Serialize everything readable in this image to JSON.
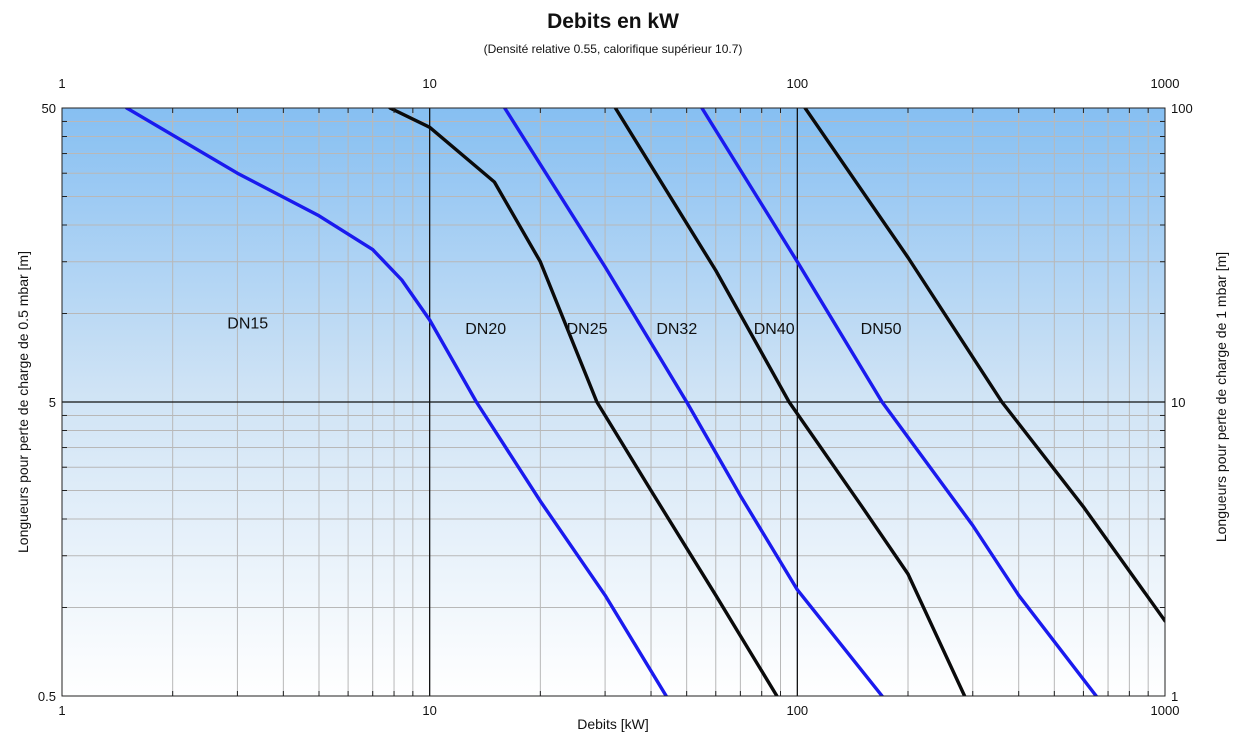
{
  "chart_data": {
    "type": "line",
    "title": "Debits en kW",
    "subtitle": "(Densité relative 0.55, calorifique supérieur 10.7)",
    "xlabel": "Debits [kW]",
    "ylabel_left": "Longueurs pour perte de charge de 0.5 mbar [m]",
    "ylabel_right": "Longueurs pour perte de charge de 1 mbar [m]",
    "x_scale": "log",
    "y_scale": "log",
    "xlim": [
      1,
      1000
    ],
    "ylim_left": [
      0.5,
      50
    ],
    "ylim_right": [
      1,
      100
    ],
    "x_ticks": [
      {
        "value": 1,
        "label": "1"
      },
      {
        "value": 10,
        "label": "10"
      },
      {
        "value": 100,
        "label": "100"
      },
      {
        "value": 1000,
        "label": "1000"
      }
    ],
    "y_ticks_left": [
      {
        "value": 0.5,
        "label": "0.5"
      },
      {
        "value": 5,
        "label": "5"
      },
      {
        "value": 50,
        "label": "50"
      }
    ],
    "y_ticks_right": [
      {
        "value": 1,
        "label": "1"
      },
      {
        "value": 10,
        "label": "10"
      },
      {
        "value": 100,
        "label": "100"
      }
    ],
    "grid": true,
    "colors": {
      "blue_series": "#1a1aee",
      "black_series": "#0a0a0a",
      "background_top": "#86bff2",
      "background_bottom": "#ffffff",
      "grid": "#b8b8b8"
    },
    "series": [
      {
        "name": "DN15",
        "color": "#1a1aee",
        "label_at": [
          3.2,
          8.9
        ],
        "points": [
          [
            1.5,
            50
          ],
          [
            3,
            30
          ],
          [
            5,
            21.5
          ],
          [
            7,
            16.5
          ],
          [
            8.4,
            13
          ],
          [
            10,
            9.5
          ],
          [
            13.4,
            5
          ],
          [
            20,
            2.3
          ],
          [
            30,
            1.1
          ],
          [
            44,
            0.5
          ]
        ]
      },
      {
        "name": "DN20",
        "color": "#0a0a0a",
        "label_at": [
          14.2,
          8.5
        ],
        "points": [
          [
            7.8,
            50
          ],
          [
            10,
            43
          ],
          [
            15,
            28
          ],
          [
            20,
            15
          ],
          [
            28.5,
            5
          ],
          [
            40,
            2.5
          ],
          [
            60,
            1.1
          ],
          [
            88,
            0.5
          ]
        ]
      },
      {
        "name": "DN25",
        "color": "#1a1aee",
        "label_at": [
          26.8,
          8.5
        ],
        "points": [
          [
            16,
            50
          ],
          [
            30,
            14.4
          ],
          [
            50,
            5
          ],
          [
            70,
            2.4
          ],
          [
            100,
            1.15
          ],
          [
            170,
            0.5
          ]
        ]
      },
      {
        "name": "DN32",
        "color": "#0a0a0a",
        "label_at": [
          47,
          8.5
        ],
        "points": [
          [
            32,
            50
          ],
          [
            60,
            14
          ],
          [
            95,
            5
          ],
          [
            150,
            2.2
          ],
          [
            200,
            1.3
          ],
          [
            285,
            0.5
          ]
        ]
      },
      {
        "name": "DN40",
        "color": "#1a1aee",
        "label_at": [
          86.5,
          8.5
        ],
        "points": [
          [
            55,
            50
          ],
          [
            100,
            15
          ],
          [
            170,
            5
          ],
          [
            300,
            1.9
          ],
          [
            400,
            1.1
          ],
          [
            650,
            0.5
          ]
        ]
      },
      {
        "name": "DN50",
        "color": "#0a0a0a",
        "label_at": [
          169,
          8.5
        ],
        "points": [
          [
            105,
            50
          ],
          [
            200,
            15.5
          ],
          [
            360,
            5
          ],
          [
            600,
            2.2
          ],
          [
            1000,
            0.9
          ]
        ]
      }
    ]
  }
}
